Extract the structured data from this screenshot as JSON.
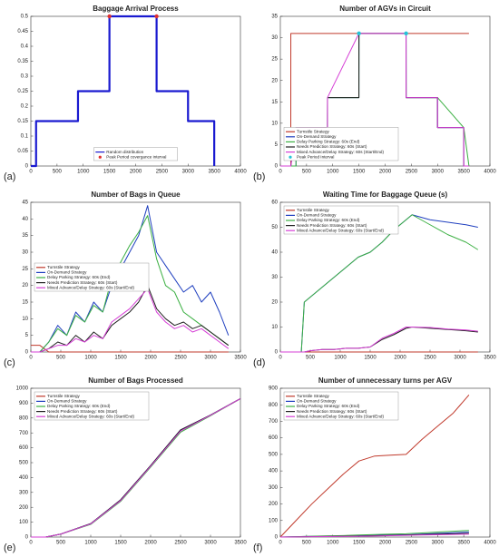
{
  "chart_data": [
    {
      "type": "line",
      "title": "Baggage Arrival Process",
      "label": "(a)",
      "legend": "lower center",
      "xlim": [
        0,
        4000
      ],
      "xticks": [
        0,
        500,
        1000,
        1500,
        2000,
        2500,
        3000,
        3500,
        4000
      ],
      "ylim": [
        0,
        0.5
      ],
      "yticks": [
        0,
        0.05,
        0.1,
        0.15,
        0.2,
        0.25,
        0.3,
        0.35,
        0.4,
        0.45,
        0.5
      ],
      "series": [
        {
          "name": "Random distribution",
          "color": "#1a1ad0",
          "width": 2.2,
          "x": [
            0,
            100,
            100,
            900,
            900,
            1500,
            1500,
            2400,
            2400,
            3000,
            3000,
            3500,
            3500
          ],
          "values": [
            0,
            0,
            0.15,
            0.15,
            0.25,
            0.25,
            0.5,
            0.5,
            0.25,
            0.25,
            0.15,
            0.15,
            0
          ]
        },
        {
          "name": "Peak Period covergance interval",
          "color": "#e03030",
          "markers_only": true,
          "x": [
            1500,
            2400
          ],
          "values": [
            0.5,
            0.5
          ]
        }
      ]
    },
    {
      "type": "line",
      "title": "Number of AGVs in Circuit",
      "label": "(b)",
      "legend": "lower left",
      "xlim": [
        0,
        4000
      ],
      "xticks": [
        0,
        500,
        1000,
        1500,
        2000,
        2500,
        3000,
        3500,
        4000
      ],
      "ylim": [
        0,
        35
      ],
      "yticks": [
        0,
        5,
        10,
        15,
        20,
        25,
        30,
        35
      ],
      "x": [
        0,
        199,
        200,
        299,
        300,
        899,
        900,
        1499,
        1500,
        2399,
        2400,
        2999,
        3000,
        3499,
        3500,
        3600
      ],
      "series": [
        {
          "name": "Turnstile Strategy",
          "color": "#c0392b",
          "values": [
            0,
            0,
            31,
            31,
            31,
            31,
            31,
            31,
            31,
            31,
            31,
            31,
            31,
            31,
            31,
            31
          ]
        },
        {
          "name": "On-Demand Strategy",
          "color": "#1f3fbf",
          "values": [
            0,
            0,
            0,
            0,
            9,
            9,
            16,
            16,
            31,
            31,
            16,
            16,
            9,
            9,
            0,
            0
          ]
        },
        {
          "name": "Delay Parking Strategy: 60s (End)",
          "color": "#3cb043",
          "values": [
            0,
            0,
            0,
            0,
            9,
            9,
            16,
            16,
            31,
            31,
            16,
            16,
            16,
            9,
            9,
            0
          ]
        },
        {
          "name": "Needs Prediction Strategy: 60s (Start)",
          "color": "#222222",
          "values": [
            0,
            0,
            0,
            9,
            9,
            9,
            16,
            16,
            31,
            31,
            16,
            16,
            9,
            9,
            0,
            0
          ]
        },
        {
          "name": "Mixed Advance/Delay Strategy: 60s (Start/End)",
          "color": "#d63fd6",
          "values": [
            0,
            0,
            0,
            9,
            9,
            9,
            16,
            31,
            31,
            31,
            16,
            16,
            9,
            9,
            0,
            0
          ]
        },
        {
          "name": "Peak Period Interval",
          "color": "#25c4d8",
          "markers_only": true,
          "x": [
            1500,
            2400
          ],
          "values": [
            31,
            31
          ]
        }
      ]
    },
    {
      "type": "line",
      "title": "Number of Bags in Queue",
      "label": "(c)",
      "legend": "center left",
      "xlim": [
        0,
        3500
      ],
      "xticks": [
        0,
        500,
        1000,
        1500,
        2000,
        2500,
        3000,
        3500
      ],
      "ylim": [
        0,
        45
      ],
      "yticks": [
        0,
        5,
        10,
        15,
        20,
        25,
        30,
        35,
        40,
        45
      ],
      "x": [
        0,
        150,
        300,
        450,
        600,
        750,
        900,
        1050,
        1200,
        1350,
        1500,
        1650,
        1800,
        1950,
        2100,
        2250,
        2400,
        2550,
        2700,
        2850,
        3000,
        3150,
        3300
      ],
      "series": [
        {
          "name": "Turnstile Strategy",
          "color": "#c0392b",
          "values": [
            2,
            2,
            0,
            0,
            0,
            0,
            0,
            0,
            0,
            0,
            0,
            0,
            0,
            0,
            0,
            0,
            0,
            0,
            0,
            0,
            0,
            0,
            0
          ]
        },
        {
          "name": "On-Demand Strategy",
          "color": "#1f3fbf",
          "values": [
            0,
            0,
            3,
            8,
            5,
            12,
            9,
            15,
            12,
            20,
            25,
            30,
            35,
            44,
            30,
            26,
            22,
            18,
            20,
            15,
            18,
            12,
            5
          ]
        },
        {
          "name": "Delay Parking Strategy: 60s (End)",
          "color": "#3cb043",
          "values": [
            0,
            0,
            3,
            7,
            5,
            11,
            9,
            14,
            12,
            22,
            27,
            32,
            36,
            41,
            28,
            20,
            18,
            12,
            10,
            8,
            6,
            4,
            2
          ]
        },
        {
          "name": "Needs Prediction Strategy: 60s (Start)",
          "color": "#222222",
          "values": [
            0,
            0,
            1,
            3,
            2,
            5,
            3,
            6,
            4,
            8,
            10,
            12,
            15,
            20,
            13,
            10,
            8,
            9,
            7,
            8,
            6,
            4,
            2
          ]
        },
        {
          "name": "Mixed Advance/Delay Strategy: 60s (Start/End)",
          "color": "#d63fd6",
          "values": [
            0,
            0,
            1,
            2,
            2,
            4,
            3,
            5,
            4,
            9,
            11,
            13,
            16,
            19,
            12,
            9,
            7,
            8,
            6,
            7,
            5,
            3,
            1
          ]
        }
      ]
    },
    {
      "type": "line",
      "title": "Waiting Time for Baggage Queue (s)",
      "label": "(d)",
      "legend": "upper left",
      "xlim": [
        0,
        3500
      ],
      "xticks": [
        0,
        500,
        1000,
        1500,
        2000,
        2500,
        3000,
        3500
      ],
      "ylim": [
        0,
        60
      ],
      "yticks": [
        0,
        10,
        20,
        30,
        40,
        50,
        60
      ],
      "x": [
        0,
        200,
        350,
        400,
        500,
        700,
        900,
        1100,
        1300,
        1500,
        1700,
        1900,
        2100,
        2200,
        2500,
        2800,
        3100,
        3300
      ],
      "series": [
        {
          "name": "Turnstile Strategy",
          "color": "#c0392b",
          "values": [
            0,
            0,
            0,
            0,
            0,
            0,
            0,
            0,
            0,
            0,
            0,
            0,
            0,
            0,
            0,
            0,
            0,
            0
          ]
        },
        {
          "name": "On-Demand Strategy",
          "color": "#1f3fbf",
          "values": [
            0,
            0,
            0,
            20,
            22,
            26,
            30,
            34,
            38,
            40,
            44,
            49,
            53,
            55,
            53,
            52,
            51,
            50
          ]
        },
        {
          "name": "Delay Parking Strategy: 60s (End)",
          "color": "#3cb043",
          "values": [
            0,
            0,
            0,
            20,
            22,
            26,
            30,
            34,
            38,
            40,
            44,
            49,
            53,
            55,
            51,
            47,
            44,
            41
          ]
        },
        {
          "name": "Needs Prediction Strategy: 60s (Start)",
          "color": "#222222",
          "values": [
            0,
            0,
            0,
            0,
            0.5,
            1,
            1,
            1.5,
            1.5,
            2,
            5,
            7,
            9.5,
            10,
            9.5,
            9,
            8.5,
            8
          ]
        },
        {
          "name": "Mixed Advance/Delay Strategy: 60s (Start/End)",
          "color": "#d63fd6",
          "values": [
            0,
            0,
            0,
            0,
            0.5,
            1,
            1,
            1.5,
            1.5,
            2,
            5.5,
            7.5,
            10,
            10,
            9.8,
            9.2,
            8.8,
            8.3
          ]
        }
      ]
    },
    {
      "type": "line",
      "title": "Number of Bags Processed",
      "label": "(e)",
      "legend": "upper left",
      "xlim": [
        0,
        3500
      ],
      "xticks": [
        0,
        500,
        1000,
        1500,
        2000,
        2500,
        3000,
        3500
      ],
      "ylim": [
        0,
        1000
      ],
      "yticks": [
        0,
        100,
        200,
        300,
        400,
        500,
        600,
        700,
        800,
        900,
        1000
      ],
      "x": [
        0,
        250,
        500,
        1000,
        1500,
        2000,
        2500,
        3000,
        3500
      ],
      "series": [
        {
          "name": "Turnstile Strategy",
          "color": "#c0392b",
          "values": [
            0,
            0,
            20,
            90,
            250,
            480,
            720,
            820,
            930
          ]
        },
        {
          "name": "On-Demand Strategy",
          "color": "#1f3fbf",
          "values": [
            0,
            0,
            20,
            90,
            250,
            480,
            720,
            820,
            930
          ]
        },
        {
          "name": "Delay Parking Strategy: 60s (End)",
          "color": "#3cb043",
          "values": [
            0,
            0,
            20,
            85,
            240,
            470,
            705,
            815,
            930
          ]
        },
        {
          "name": "Needs Prediction Strategy: 60s (Start)",
          "color": "#222222",
          "values": [
            0,
            0,
            20,
            90,
            250,
            480,
            720,
            820,
            930
          ]
        },
        {
          "name": "Mixed Advance/Delay Strategy: 60s (Start/End)",
          "color": "#d63fd6",
          "values": [
            0,
            0,
            20,
            88,
            245,
            475,
            712,
            818,
            930
          ]
        }
      ]
    },
    {
      "type": "line",
      "title": "Number of unnecessary turns per AGV",
      "label": "(f)",
      "legend": "upper left",
      "xlim": [
        0,
        4000
      ],
      "xticks": [
        0,
        500,
        1000,
        1500,
        2000,
        2500,
        3000,
        3500,
        4000
      ],
      "ylim": [
        0,
        900
      ],
      "yticks": [
        0,
        100,
        200,
        300,
        400,
        500,
        600,
        700,
        800,
        900
      ],
      "x": [
        0,
        300,
        600,
        900,
        1200,
        1500,
        1800,
        2100,
        2400,
        2700,
        3000,
        3300,
        3600
      ],
      "series": [
        {
          "name": "Turnstile Strategy",
          "color": "#c0392b",
          "values": [
            0,
            100,
            200,
            290,
            380,
            460,
            490,
            495,
            500,
            590,
            670,
            750,
            860
          ]
        },
        {
          "name": "On-Demand Strategy",
          "color": "#1f3fbf",
          "values": [
            0,
            2,
            4,
            5,
            6,
            8,
            10,
            12,
            14,
            18,
            22,
            26,
            30
          ]
        },
        {
          "name": "Delay Parking Strategy: 60s (End)",
          "color": "#3cb043",
          "values": [
            0,
            2,
            5,
            7,
            9,
            12,
            15,
            18,
            20,
            25,
            30,
            35,
            40
          ]
        },
        {
          "name": "Needs Prediction Strategy: 60s (Start)",
          "color": "#222222",
          "values": [
            0,
            1,
            3,
            4,
            5,
            6,
            8,
            10,
            12,
            15,
            18,
            20,
            22
          ]
        },
        {
          "name": "Mixed Advance/Delay Strategy: 60s (Start/End)",
          "color": "#d63fd6",
          "values": [
            0,
            1,
            2,
            3,
            4,
            5,
            6,
            8,
            10,
            12,
            14,
            16,
            18
          ]
        }
      ]
    }
  ]
}
